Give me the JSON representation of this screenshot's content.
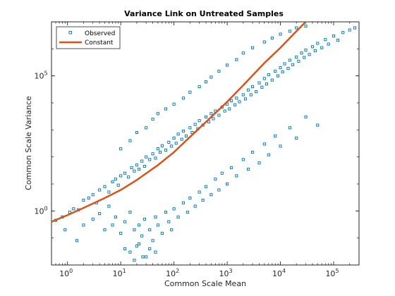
{
  "chart_data": {
    "type": "scatter",
    "title": "Variance Link on Untreated Samples",
    "xlabel": "Common Scale Mean",
    "ylabel": "Common Scale Variance",
    "x_scale": "log",
    "y_scale": "log",
    "xlim": [
      0.5,
      300000
    ],
    "ylim": [
      0.01,
      10000000
    ],
    "x_ticks": [
      {
        "base": "10",
        "exp": "0",
        "value": 1
      },
      {
        "base": "10",
        "exp": "1",
        "value": 10
      },
      {
        "base": "10",
        "exp": "2",
        "value": 100
      },
      {
        "base": "10",
        "exp": "3",
        "value": 1000
      },
      {
        "base": "10",
        "exp": "4",
        "value": 10000
      },
      {
        "base": "10",
        "exp": "5",
        "value": 100000
      }
    ],
    "y_ticks": [
      {
        "base": "10",
        "exp": "0",
        "value": 1
      },
      {
        "base": "10",
        "exp": "5",
        "value": 100000
      }
    ],
    "legend_position": "top-left",
    "series": [
      {
        "name": "Observed",
        "kind": "scatter-squares",
        "color": "#0072BD",
        "points": [
          [
            0.6,
            0.45
          ],
          [
            0.8,
            0.6
          ],
          [
            1.1,
            0.9
          ],
          [
            1.3,
            1.2
          ],
          [
            1.6,
            1.1
          ],
          [
            2,
            2.5
          ],
          [
            2.5,
            3
          ],
          [
            3,
            4
          ],
          [
            3.5,
            2
          ],
          [
            4,
            6
          ],
          [
            5,
            8
          ],
          [
            6,
            5
          ],
          [
            7,
            12
          ],
          [
            8,
            15
          ],
          [
            9,
            9
          ],
          [
            10,
            20
          ],
          [
            12,
            25
          ],
          [
            14,
            18
          ],
          [
            16,
            40
          ],
          [
            18,
            30
          ],
          [
            20,
            50
          ],
          [
            22,
            35
          ],
          [
            25,
            70
          ],
          [
            28,
            45
          ],
          [
            30,
            100
          ],
          [
            35,
            80
          ],
          [
            40,
            130
          ],
          [
            45,
            90
          ],
          [
            50,
            200
          ],
          [
            55,
            150
          ],
          [
            60,
            260
          ],
          [
            70,
            180
          ],
          [
            80,
            350
          ],
          [
            90,
            250
          ],
          [
            100,
            500
          ],
          [
            110,
            320
          ],
          [
            120,
            700
          ],
          [
            140,
            450
          ],
          [
            150,
            900
          ],
          [
            170,
            600
          ],
          [
            200,
            1200
          ],
          [
            220,
            800
          ],
          [
            250,
            1600
          ],
          [
            280,
            1100
          ],
          [
            300,
            2200
          ],
          [
            350,
            1500
          ],
          [
            400,
            3000
          ],
          [
            450,
            2000
          ],
          [
            500,
            4000
          ],
          [
            550,
            2600
          ],
          [
            600,
            5000
          ],
          [
            700,
            3500
          ],
          [
            800,
            7000
          ],
          [
            900,
            5000
          ],
          [
            1000,
            9000
          ],
          [
            1100,
            6000
          ],
          [
            1200,
            12000
          ],
          [
            1400,
            8500
          ],
          [
            1500,
            15000
          ],
          [
            1700,
            11000
          ],
          [
            2000,
            20000
          ],
          [
            2200,
            14000
          ],
          [
            2500,
            30000
          ],
          [
            2800,
            20000
          ],
          [
            3000,
            40000
          ],
          [
            3500,
            26000
          ],
          [
            4000,
            55000
          ],
          [
            4500,
            38000
          ],
          [
            5000,
            80000
          ],
          [
            5500,
            50000
          ],
          [
            6000,
            110000
          ],
          [
            7000,
            70000
          ],
          [
            8000,
            150000
          ],
          [
            9000,
            100000
          ],
          [
            10000,
            200000
          ],
          [
            11000,
            140000
          ],
          [
            12000,
            280000
          ],
          [
            14000,
            190000
          ],
          [
            15000,
            380000
          ],
          [
            17000,
            260000
          ],
          [
            20000,
            500000
          ],
          [
            22000,
            350000
          ],
          [
            25000,
            700000
          ],
          [
            28000,
            480000
          ],
          [
            30000,
            900000
          ],
          [
            35000,
            620000
          ],
          [
            40000,
            1200000
          ],
          [
            45000,
            850000
          ],
          [
            50000,
            1600000
          ],
          [
            60000,
            1100000
          ],
          [
            70000,
            2200000
          ],
          [
            80000,
            1500000
          ],
          [
            100000,
            3000000
          ],
          [
            120000,
            2100000
          ],
          [
            150000,
            4000000
          ],
          [
            200000,
            5000000
          ],
          [
            250000,
            6000000
          ],
          [
            3,
            0.5
          ],
          [
            4,
            0.8
          ],
          [
            5,
            0.2
          ],
          [
            6,
            1.5
          ],
          [
            7,
            0.3
          ],
          [
            8,
            0.6
          ],
          [
            10,
            0.15
          ],
          [
            12,
            0.4
          ],
          [
            15,
            0.9
          ],
          [
            18,
            0.2
          ],
          [
            20,
            0.05
          ],
          [
            22,
            0.3
          ],
          [
            25,
            0.12
          ],
          [
            28,
            0.5
          ],
          [
            30,
            0.02
          ],
          [
            35,
            0.2
          ],
          [
            40,
            0.08
          ],
          [
            45,
            0.6
          ],
          [
            50,
            0.3
          ],
          [
            60,
            0.15
          ],
          [
            70,
            0.9
          ],
          [
            80,
            0.4
          ],
          [
            90,
            0.2
          ],
          [
            100,
            1.2
          ],
          [
            120,
            0.6
          ],
          [
            150,
            2
          ],
          [
            180,
            0.9
          ],
          [
            200,
            3
          ],
          [
            250,
            1.5
          ],
          [
            300,
            5
          ],
          [
            350,
            2.5
          ],
          [
            400,
            8
          ],
          [
            500,
            4
          ],
          [
            600,
            15
          ],
          [
            700,
            6
          ],
          [
            800,
            25
          ],
          [
            1000,
            10
          ],
          [
            1200,
            40
          ],
          [
            1500,
            20
          ],
          [
            2000,
            80
          ],
          [
            2500,
            35
          ],
          [
            3000,
            150
          ],
          [
            4000,
            60
          ],
          [
            5000,
            300
          ],
          [
            6000,
            120
          ],
          [
            8000,
            600
          ],
          [
            10000,
            250
          ],
          [
            15000,
            1200
          ],
          [
            20000,
            500
          ],
          [
            30000,
            3000
          ],
          [
            50000,
            1500
          ],
          [
            10,
            200
          ],
          [
            15,
            400
          ],
          [
            20,
            800
          ],
          [
            30,
            1200
          ],
          [
            40,
            2500
          ],
          [
            50,
            4000
          ],
          [
            70,
            6000
          ],
          [
            100,
            9000
          ],
          [
            150,
            15000
          ],
          [
            200,
            25000
          ],
          [
            300,
            40000
          ],
          [
            400,
            60000
          ],
          [
            500,
            90000
          ],
          [
            700,
            150000
          ],
          [
            1000,
            250000
          ],
          [
            1500,
            400000
          ],
          [
            2000,
            700000
          ],
          [
            3000,
            1100000
          ],
          [
            5000,
            1800000
          ],
          [
            7000,
            2500000
          ],
          [
            10000,
            3500000
          ],
          [
            15000,
            4500000
          ],
          [
            20000,
            6000000
          ],
          [
            30000,
            7000000
          ],
          [
            0.9,
            0.2
          ],
          [
            1.5,
            0.08
          ],
          [
            2,
            0.3
          ],
          [
            12,
            0.04
          ],
          [
            15,
            0.03
          ],
          [
            18,
            0.015
          ],
          [
            22,
            0.06
          ],
          [
            26,
            0.02
          ],
          [
            35,
            0.04
          ],
          [
            45,
            0.03
          ]
        ]
      },
      {
        "name": "Constant",
        "kind": "line",
        "color": "#D95319",
        "points": [
          [
            0.5,
            0.4
          ],
          [
            1,
            0.7
          ],
          [
            2,
            1.3
          ],
          [
            5,
            3
          ],
          [
            10,
            6
          ],
          [
            20,
            14
          ],
          [
            50,
            50
          ],
          [
            100,
            150
          ],
          [
            200,
            550
          ],
          [
            500,
            3000
          ],
          [
            1000,
            11000
          ],
          [
            2000,
            45000
          ],
          [
            5000,
            300000
          ],
          [
            10000,
            1100000
          ],
          [
            20000,
            4500000
          ],
          [
            50000,
            28000000
          ]
        ]
      }
    ]
  }
}
